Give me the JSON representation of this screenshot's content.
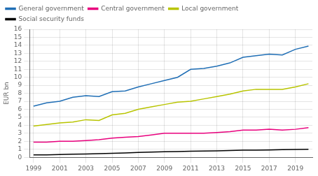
{
  "chart_data": {
    "type": "line",
    "x": [
      1999,
      2000,
      2001,
      2002,
      2003,
      2004,
      2005,
      2006,
      2007,
      2008,
      2009,
      2010,
      2011,
      2012,
      2013,
      2014,
      2015,
      2016,
      2017,
      2018,
      2019,
      2020
    ],
    "series": [
      {
        "name": "General government",
        "color": "#1f6eb5",
        "values": [
          6.4,
          6.8,
          7.0,
          7.5,
          7.7,
          7.6,
          8.2,
          8.3,
          8.8,
          9.2,
          9.6,
          10.0,
          11.0,
          11.1,
          11.4,
          11.8,
          12.5,
          12.7,
          12.9,
          12.8,
          13.5,
          13.9
        ]
      },
      {
        "name": "Central government",
        "color": "#e8007d",
        "values": [
          1.9,
          1.9,
          2.0,
          2.0,
          2.1,
          2.2,
          2.4,
          2.5,
          2.6,
          2.8,
          3.0,
          3.0,
          3.0,
          3.0,
          3.1,
          3.2,
          3.4,
          3.4,
          3.5,
          3.4,
          3.5,
          3.7
        ]
      },
      {
        "name": "Local government",
        "color": "#b8c400",
        "values": [
          3.9,
          4.1,
          4.3,
          4.4,
          4.7,
          4.6,
          5.3,
          5.5,
          6.0,
          6.3,
          6.6,
          6.9,
          7.0,
          7.3,
          7.6,
          7.9,
          8.3,
          8.5,
          8.5,
          8.5,
          8.8,
          9.2
        ]
      },
      {
        "name": "Social security funds",
        "color": "#000000",
        "values": [
          0.3,
          0.3,
          0.35,
          0.38,
          0.4,
          0.45,
          0.5,
          0.55,
          0.6,
          0.65,
          0.7,
          0.72,
          0.75,
          0.78,
          0.8,
          0.85,
          0.88,
          0.9,
          0.92,
          0.95,
          0.98,
          1.0
        ]
      }
    ],
    "ylabel": "EUR bn",
    "xlim": [
      1998.7,
      2020.3
    ],
    "xticks": [
      1999,
      2001,
      2003,
      2005,
      2007,
      2009,
      2011,
      2013,
      2015,
      2017,
      2019
    ],
    "ylim": [
      0,
      16
    ],
    "yticks": [
      0,
      1,
      2,
      3,
      4,
      5,
      6,
      7,
      8,
      9,
      10,
      11,
      12,
      13,
      14,
      15,
      16
    ],
    "grid": true,
    "legend": "upper left"
  }
}
